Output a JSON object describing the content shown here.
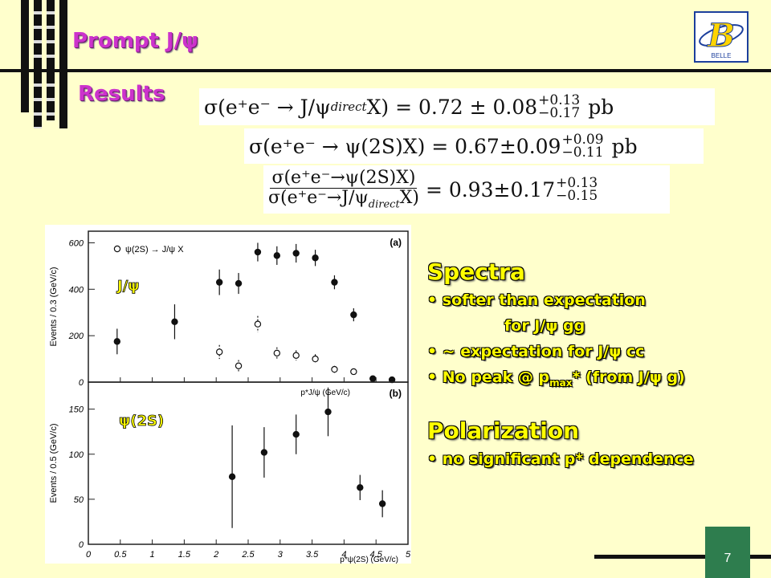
{
  "slide": {
    "title": "Prompt J/ψ",
    "subtitle": "Results",
    "page_number": "7"
  },
  "logo": {
    "letter": "B",
    "text": "BELLE"
  },
  "equations": [
    {
      "lhs": "σ(e⁺e⁻ → J/ψ",
      "lhs_sub": "direct",
      "lhs_end": "X) = 0.72 ± 0.08",
      "sup": "+0.13",
      "sub": "−0.17",
      "unit": "pb"
    },
    {
      "lhs": "σ(e⁺e⁻ → ψ(2S)X) = 0.67±0.09",
      "sup": "+0.09",
      "sub": "−0.11",
      "unit": "pb"
    },
    {
      "num": "σ(e⁺e⁻→ψ(2S)X)",
      "den": "σ(e⁺e⁻→J/ψ",
      "den_sub": "direct",
      "den_end": "X)",
      "rhs": "= 0.93±0.17",
      "sup": "+0.13",
      "sub": "−0.15"
    }
  ],
  "sections": {
    "spectra": {
      "heading": "Spectra",
      "items": [
        "softer than expectation",
        "for J/ψ gg",
        "~ expectation for J/ψ cc",
        "No peak @ p",
        "max",
        "*  (from J/ψ g)"
      ]
    },
    "polarization": {
      "heading": "Polarization",
      "items": [
        "no significant p* dependence"
      ]
    }
  },
  "chart_data": [
    {
      "type": "scatter",
      "panel": "(a)",
      "label": "J/ψ",
      "legend": "ψ(2S) → J/ψ X",
      "ylabel": "Events / 0.3 (GeV/c)",
      "xlabel": "p*J/ψ (GeV/c)",
      "xlim": [
        0,
        5
      ],
      "ylim": [
        0,
        650
      ],
      "yticks": [
        0,
        200,
        400,
        600
      ],
      "series": [
        {
          "name": "J/ψ",
          "marker": "filled",
          "points": [
            {
              "x": 0.45,
              "y": 175,
              "err": 55
            },
            {
              "x": 1.35,
              "y": 260,
              "err": 75
            },
            {
              "x": 2.05,
              "y": 430,
              "err": 55
            },
            {
              "x": 2.35,
              "y": 425,
              "err": 45
            },
            {
              "x": 2.65,
              "y": 560,
              "err": 40
            },
            {
              "x": 2.95,
              "y": 545,
              "err": 40
            },
            {
              "x": 3.25,
              "y": 555,
              "err": 40
            },
            {
              "x": 3.55,
              "y": 535,
              "err": 35
            },
            {
              "x": 3.85,
              "y": 430,
              "err": 30
            },
            {
              "x": 4.15,
              "y": 290,
              "err": 28
            },
            {
              "x": 4.45,
              "y": 15,
              "err": 8
            },
            {
              "x": 4.75,
              "y": 10,
              "err": 6
            }
          ]
        },
        {
          "name": "ψ(2S) → J/ψ X",
          "marker": "open",
          "points": [
            {
              "x": 2.05,
              "y": 130,
              "err": 30
            },
            {
              "x": 2.35,
              "y": 70,
              "err": 25
            },
            {
              "x": 2.65,
              "y": 250,
              "err": 35
            },
            {
              "x": 2.95,
              "y": 125,
              "err": 25
            },
            {
              "x": 3.25,
              "y": 115,
              "err": 22
            },
            {
              "x": 3.55,
              "y": 100,
              "err": 20
            },
            {
              "x": 3.85,
              "y": 55,
              "err": 15
            },
            {
              "x": 4.15,
              "y": 45,
              "err": 12
            }
          ]
        }
      ]
    },
    {
      "type": "scatter",
      "panel": "(b)",
      "label": "ψ(2S)",
      "ylabel": "Events / 0.5 (GeV/c)",
      "xlabel": "p*ψ(2S) (GeV/c)",
      "xlim": [
        0,
        5
      ],
      "ylim": [
        0,
        180
      ],
      "yticks": [
        0,
        50,
        100,
        150
      ],
      "xticks": [
        0,
        0.5,
        1,
        1.5,
        2,
        2.5,
        3,
        3.5,
        4,
        4.5,
        5
      ],
      "series": [
        {
          "name": "ψ(2S)",
          "marker": "filled",
          "points": [
            {
              "x": 2.25,
              "y": 75,
              "err": 57
            },
            {
              "x": 2.75,
              "y": 102,
              "err": 28
            },
            {
              "x": 3.25,
              "y": 122,
              "err": 22
            },
            {
              "x": 3.75,
              "y": 147,
              "err": 27
            },
            {
              "x": 4.25,
              "y": 63,
              "err": 14
            },
            {
              "x": 4.6,
              "y": 45,
              "err": 15
            }
          ]
        }
      ]
    }
  ],
  "colors": {
    "background": "#ffffcc",
    "title": "#cc33cc",
    "heading": "#ffff00",
    "page_box": "#2e7d4e"
  }
}
